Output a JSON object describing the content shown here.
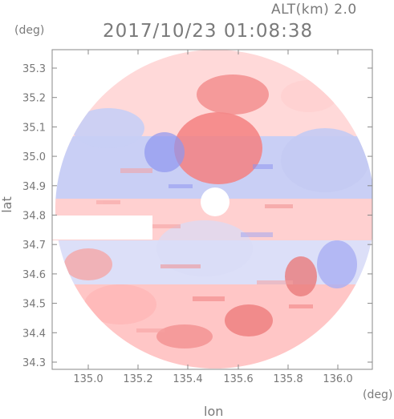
{
  "header": {
    "altitude_label": "ALT(km) 2.0",
    "timestamp": "2017/10/23 01:08:38"
  },
  "axes": {
    "unit_left": "(deg)",
    "unit_bottom": "(deg)",
    "xlabel": "lon",
    "ylabel": "lat",
    "x_ticks": [
      "135.0",
      "135.2",
      "135.4",
      "135.6",
      "135.8",
      "136.0"
    ],
    "y_ticks": [
      "34.3",
      "34.4",
      "34.5",
      "34.6",
      "34.7",
      "34.8",
      "34.9",
      "35.0",
      "35.1",
      "35.2",
      "35.3"
    ]
  },
  "colors": {
    "approaching": "#8f95f0",
    "receding": "#f08a8a",
    "frame": "#888888"
  }
}
